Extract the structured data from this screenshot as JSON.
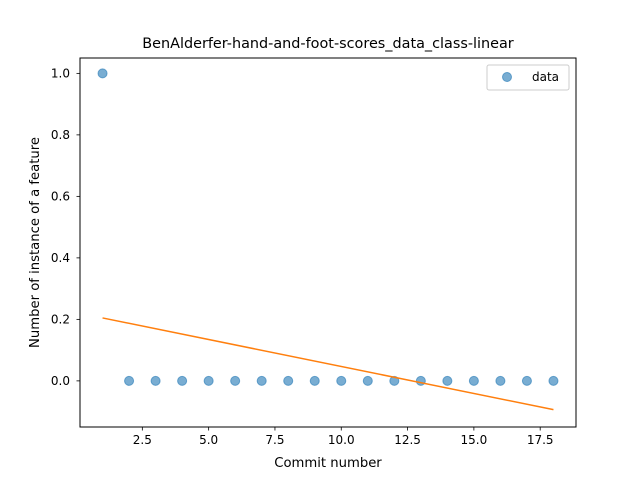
{
  "chart_data": {
    "type": "scatter",
    "title": "BenAlderfer-hand-and-foot-scores_data_class-linear",
    "xlabel": "Commit number",
    "ylabel": "Number of instance of a feature",
    "xlim": [
      0.15,
      18.85
    ],
    "ylim": [
      -0.15,
      1.05
    ],
    "x_ticks": [
      2.5,
      5.0,
      7.5,
      10.0,
      12.5,
      15.0,
      17.5
    ],
    "x_tick_labels": [
      "2.5",
      "5.0",
      "7.5",
      "10.0",
      "12.5",
      "15.0",
      "17.5"
    ],
    "y_ticks": [
      0.0,
      0.2,
      0.4,
      0.6,
      0.8,
      1.0
    ],
    "y_tick_labels": [
      "0.0",
      "0.2",
      "0.4",
      "0.6",
      "0.8",
      "1.0"
    ],
    "grid": false,
    "legend_position": "top-right",
    "series": [
      {
        "name": "data",
        "kind": "scatter",
        "color": "#1f77b4",
        "x": [
          1,
          2,
          3,
          4,
          5,
          6,
          7,
          8,
          9,
          10,
          11,
          12,
          13,
          14,
          15,
          16,
          17,
          18
        ],
        "y": [
          1,
          0,
          0,
          0,
          0,
          0,
          0,
          0,
          0,
          0,
          0,
          0,
          0,
          0,
          0,
          0,
          0,
          0
        ]
      },
      {
        "kind": "line",
        "color": "#ff7f0e",
        "x": [
          1,
          18
        ],
        "y": [
          0.2047,
          -0.0936
        ]
      }
    ]
  }
}
